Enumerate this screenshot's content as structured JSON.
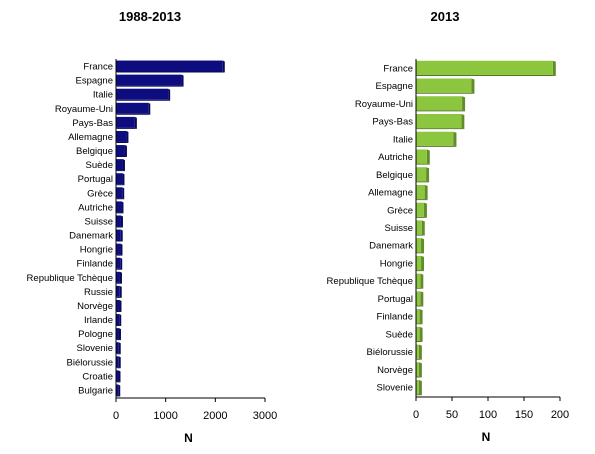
{
  "chart_data": [
    {
      "type": "bar",
      "orientation": "horizontal",
      "title": "1988-2013",
      "xlabel": "N",
      "ylabel": "",
      "xlim": [
        0,
        3000
      ],
      "xticks": [
        0,
        1000,
        2000,
        3000
      ],
      "grid": false,
      "color": "#0d0d80",
      "categories": [
        "France",
        "Espagne",
        "Italie",
        "Royaume-Uni",
        "Pays-Bas",
        "Allemagne",
        "Belgique",
        "Suède",
        "Portugal",
        "Grèce",
        "Autriche",
        "Suisse",
        "Danemark",
        "Hongrie",
        "Finlande",
        "Republique Tchèque",
        "Russie",
        "Norvège",
        "Irlande",
        "Pologne",
        "Slovenie",
        "Biélorussie",
        "Croatie",
        "Bulgarie"
      ],
      "values": [
        2150,
        1320,
        1050,
        650,
        380,
        210,
        180,
        140,
        130,
        125,
        110,
        100,
        95,
        90,
        85,
        80,
        75,
        70,
        65,
        60,
        55,
        55,
        50,
        45
      ]
    },
    {
      "type": "bar",
      "orientation": "horizontal",
      "title": "2013",
      "xlabel": "N",
      "ylabel": "",
      "xlim": [
        0,
        200
      ],
      "xticks": [
        0,
        50,
        100,
        150,
        200
      ],
      "grid": false,
      "color": "#8cc63f",
      "categories": [
        "France",
        "Espagne",
        "Royaume-Uni",
        "Pays-Bas",
        "Italie",
        "Autriche",
        "Belgique",
        "Allemagne",
        "Grèce",
        "Suisse",
        "Danemark",
        "Hongrie",
        "Republique Tchèque",
        "Portugal",
        "Finlande",
        "Suède",
        "Biélorussie",
        "Norvège",
        "Slovenie"
      ],
      "values": [
        190,
        77,
        64,
        63,
        52,
        15,
        14,
        12,
        11,
        8,
        7,
        7,
        6,
        6,
        5,
        5,
        4,
        4,
        4
      ]
    }
  ]
}
